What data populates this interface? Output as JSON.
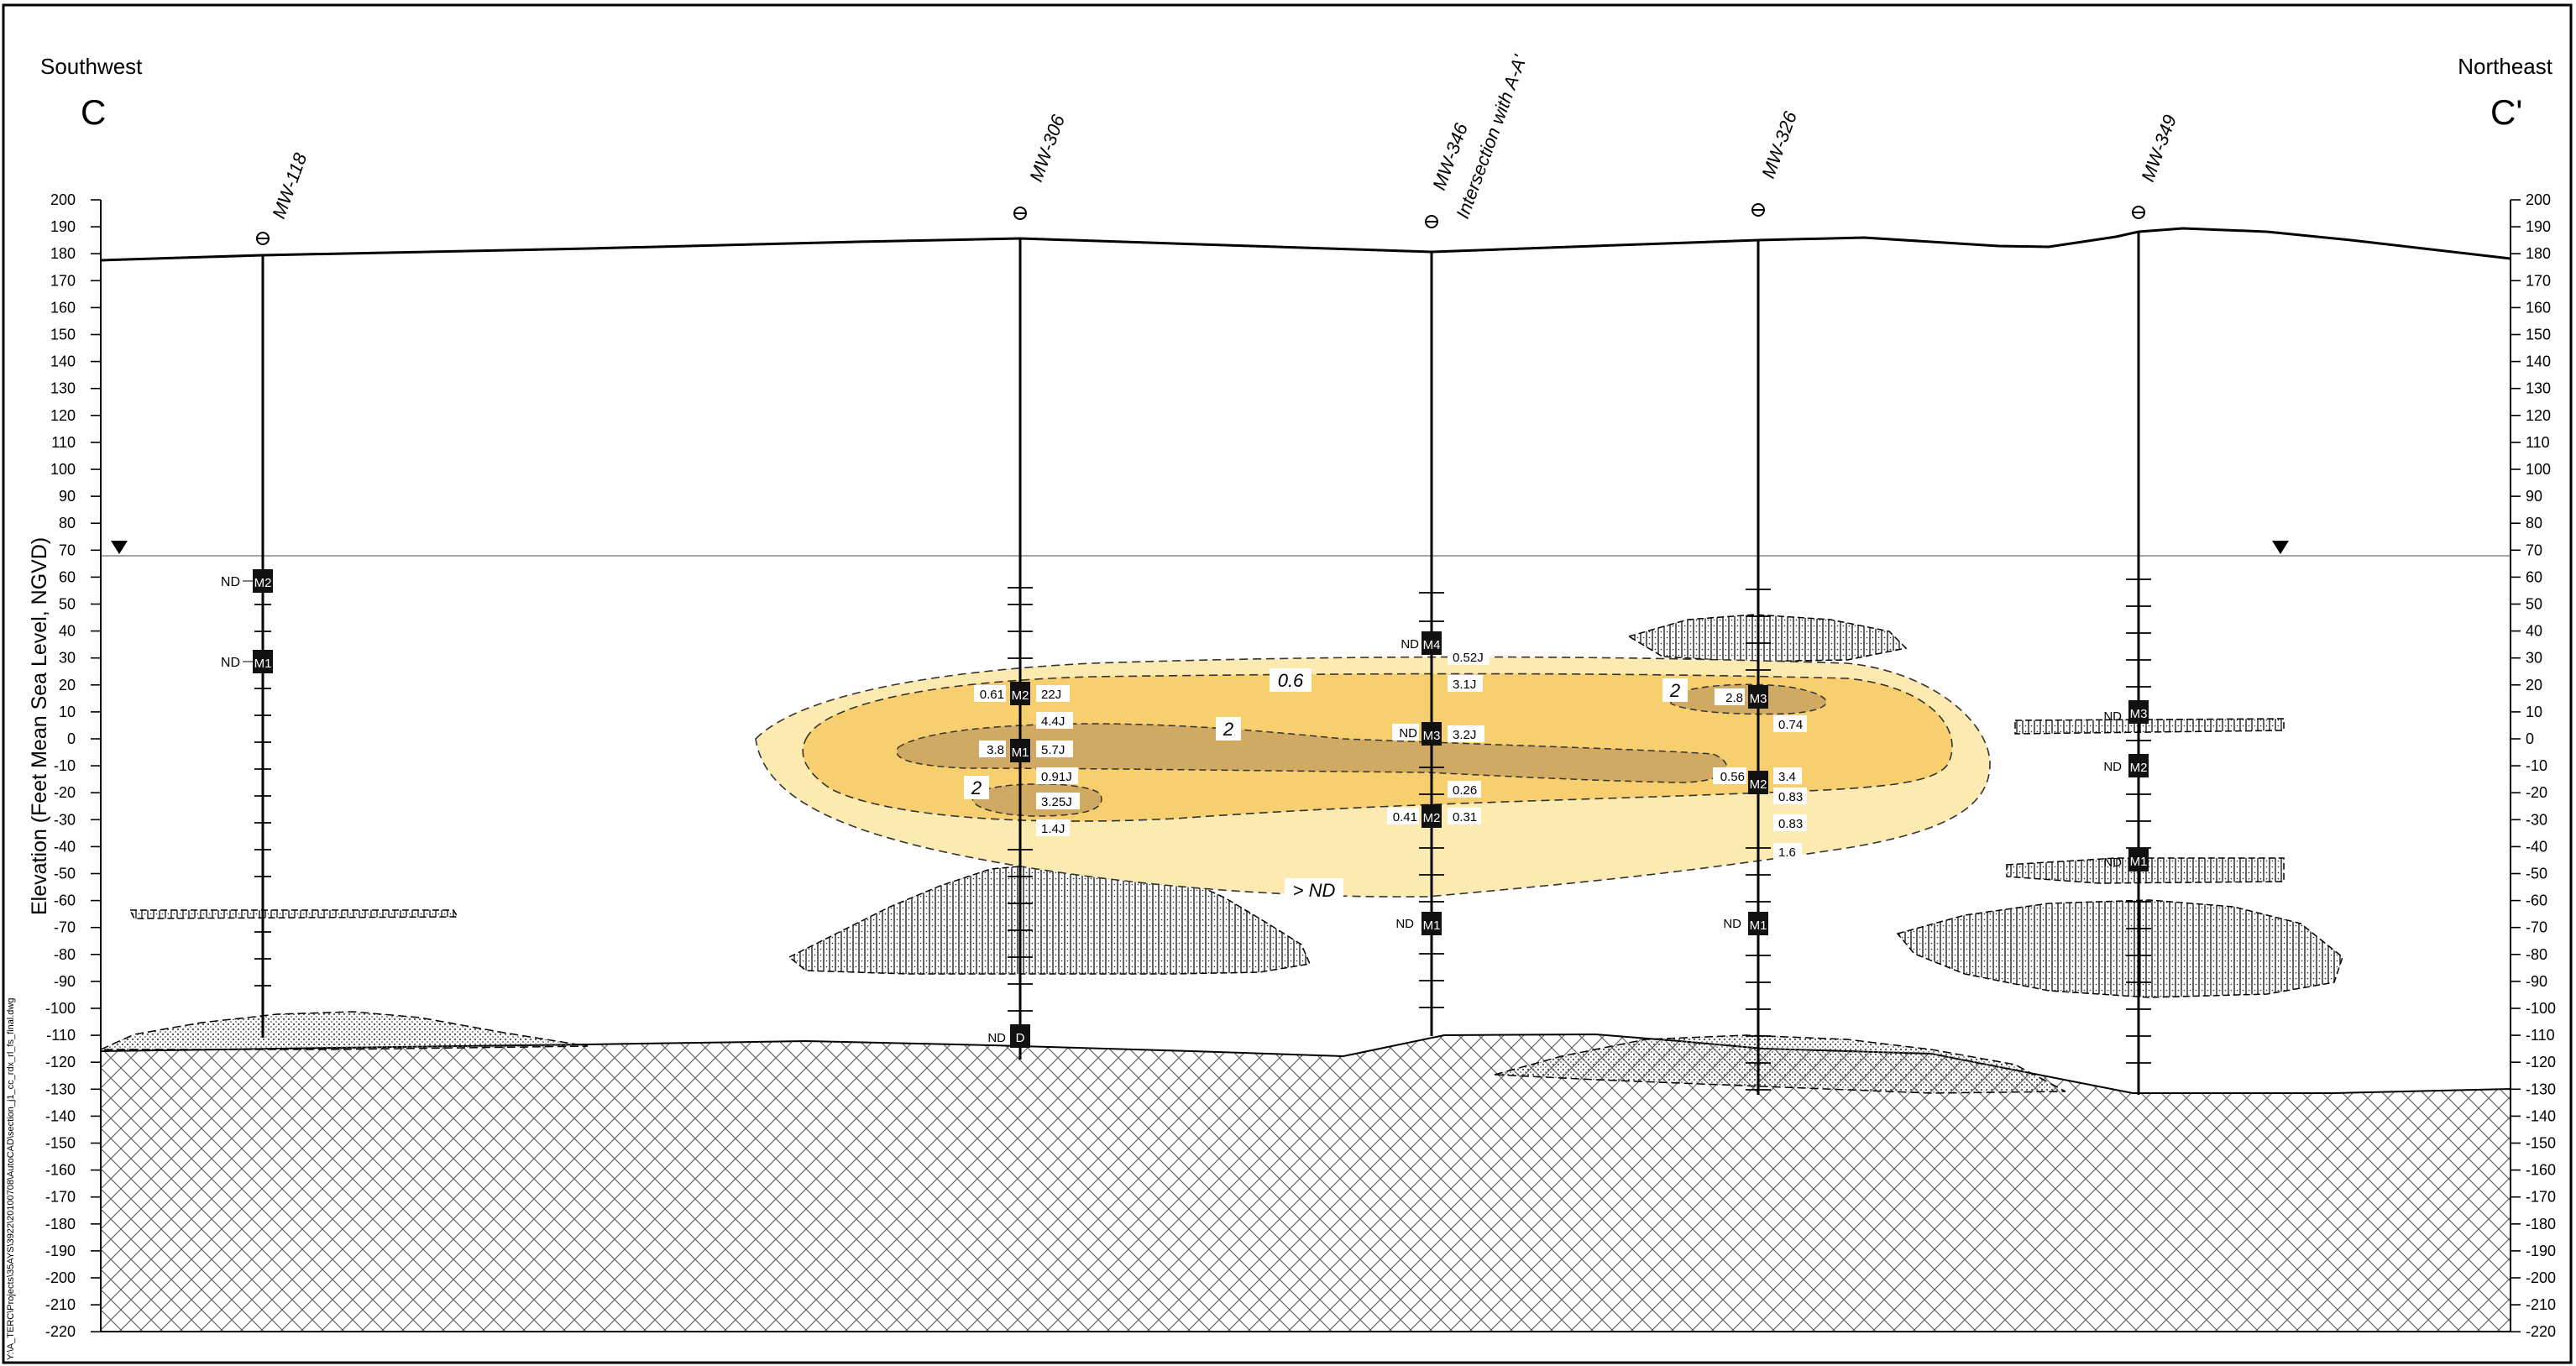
{
  "left_direction": "Southwest",
  "right_direction": "Northeast",
  "left_section_label": "C",
  "right_section_label": "C'",
  "y_axis_label": "Elevation (Feet Mean Sea Level, NGVD)",
  "file_path": "Y:\\A_TERC\\Projects\\35AYS\\3922\\20100708\\AutoCAD\\section_j1_cc_rdx_rl_fs_final.dwg",
  "elevation_ticks": [
    200,
    190,
    180,
    170,
    160,
    150,
    140,
    130,
    120,
    110,
    100,
    90,
    80,
    70,
    60,
    50,
    40,
    30,
    20,
    10,
    0,
    -10,
    -20,
    -30,
    -40,
    -50,
    -60,
    -70,
    -80,
    -90,
    -100,
    -110,
    -120,
    -130,
    -140,
    -150,
    -160,
    -170,
    -180,
    -190,
    -200,
    -210,
    -220
  ],
  "wells": [
    {
      "name": "MW-118",
      "note": ""
    },
    {
      "name": "MW-306",
      "note": ""
    },
    {
      "name": "MW-346",
      "note": "Intersection with A-A'"
    },
    {
      "name": "MW-326",
      "note": ""
    },
    {
      "name": "MW-349",
      "note": ""
    }
  ],
  "screens": {
    "mw118": [
      {
        "id": "M2",
        "value": "ND"
      },
      {
        "id": "M1",
        "value": "ND"
      }
    ],
    "mw306": [
      {
        "id": "M2",
        "value": "0.61"
      },
      {
        "id": "M1",
        "value": "3.8"
      },
      {
        "id": "D",
        "value": "ND"
      }
    ],
    "mw346": [
      {
        "id": "M4",
        "value": "ND"
      },
      {
        "id": "M3",
        "value": "ND"
      },
      {
        "id": "M2",
        "value": "0.41"
      },
      {
        "id": "M1",
        "value": "ND"
      }
    ],
    "mw326": [
      {
        "id": "M3",
        "value": "2.8"
      },
      {
        "id": "M2",
        "value": "0.56"
      },
      {
        "id": "M1",
        "value": "ND"
      }
    ],
    "mw349": [
      {
        "id": "M3",
        "value": "ND"
      },
      {
        "id": "M2",
        "value": "ND"
      },
      {
        "id": "M1",
        "value": "ND"
      }
    ]
  },
  "samples": {
    "mw306": [
      "22J",
      "4.4J",
      "5.7J",
      "0.91J",
      "3.25J",
      "1.4J"
    ],
    "mw346": [
      "0.52J",
      "3.1J",
      "3.2J",
      "0.26",
      "0.31"
    ],
    "mw326": [
      "0.74",
      "3.4",
      "0.83",
      "0.83",
      "1.6"
    ]
  },
  "contours": {
    "c06": "0.6",
    "c2a": "2",
    "c2b": "2",
    "c2c": "2",
    "nd": "> ND"
  },
  "colors": {
    "plume_outer": "#fdeab0",
    "plume_mid": "#f8cf6e",
    "plume_core": "#c9a262"
  }
}
